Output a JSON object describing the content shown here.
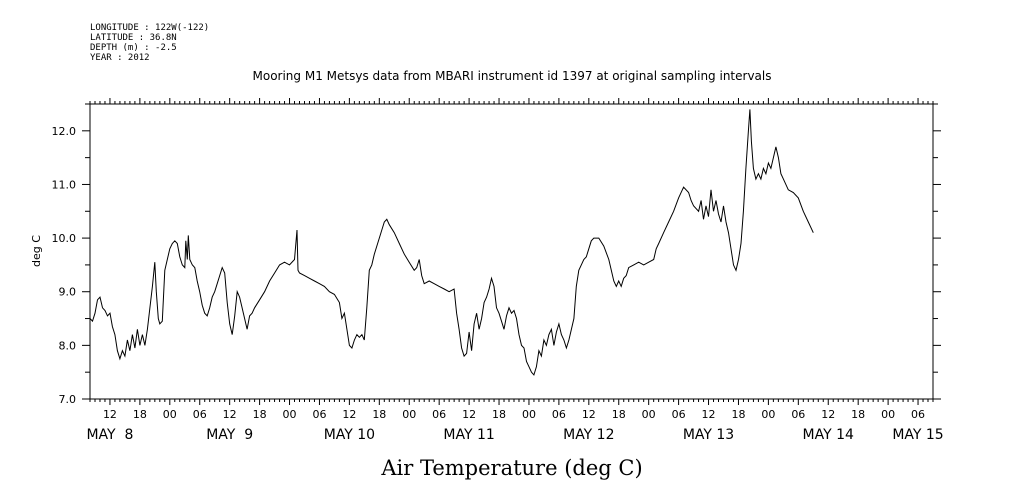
{
  "metadata": {
    "longitude": "LONGITUDE : 122W(-122)",
    "latitude": "LATITUDE : 36.8N",
    "depth": "DEPTH (m) : -2.5",
    "year": "YEAR : 2012"
  },
  "chart_data": {
    "type": "line",
    "title": "Mooring M1 Metsys data from MBARI instrument id 1397 at original sampling intervals",
    "xlabel": "Air Temperature (deg C)",
    "ylabel": "deg C",
    "ylim": [
      7.0,
      12.5
    ],
    "yticks": [
      "7.0",
      "8.0",
      "9.0",
      "10.0",
      "11.0",
      "12.0"
    ],
    "x_units": "hours since MAY 8 00:00",
    "xlim": [
      8.0,
      177.0
    ],
    "hour_tick_labels": [
      {
        "x": 12,
        "label": "12"
      },
      {
        "x": 18,
        "label": "18"
      },
      {
        "x": 24,
        "label": "00"
      },
      {
        "x": 30,
        "label": "06"
      },
      {
        "x": 36,
        "label": "12"
      },
      {
        "x": 42,
        "label": "18"
      },
      {
        "x": 48,
        "label": "00"
      },
      {
        "x": 54,
        "label": "06"
      },
      {
        "x": 60,
        "label": "12"
      },
      {
        "x": 66,
        "label": "18"
      },
      {
        "x": 72,
        "label": "00"
      },
      {
        "x": 78,
        "label": "06"
      },
      {
        "x": 84,
        "label": "12"
      },
      {
        "x": 90,
        "label": "18"
      },
      {
        "x": 96,
        "label": "00"
      },
      {
        "x": 102,
        "label": "06"
      },
      {
        "x": 108,
        "label": "12"
      },
      {
        "x": 114,
        "label": "18"
      },
      {
        "x": 120,
        "label": "00"
      },
      {
        "x": 126,
        "label": "06"
      },
      {
        "x": 132,
        "label": "12"
      },
      {
        "x": 138,
        "label": "18"
      },
      {
        "x": 144,
        "label": "00"
      },
      {
        "x": 150,
        "label": "06"
      },
      {
        "x": 156,
        "label": "12"
      },
      {
        "x": 162,
        "label": "18"
      },
      {
        "x": 168,
        "label": "00"
      },
      {
        "x": 174,
        "label": "06"
      }
    ],
    "day_labels": [
      {
        "x": 12,
        "label": "MAY  8"
      },
      {
        "x": 36,
        "label": "MAY  9"
      },
      {
        "x": 60,
        "label": "MAY 10"
      },
      {
        "x": 84,
        "label": "MAY 11"
      },
      {
        "x": 108,
        "label": "MAY 12"
      },
      {
        "x": 132,
        "label": "MAY 13"
      },
      {
        "x": 156,
        "label": "MAY 14"
      },
      {
        "x": 174,
        "label": "MAY 15"
      }
    ],
    "grid": false,
    "series": [
      {
        "line_color": "#000000",
        "points": [
          [
            8.0,
            8.5
          ],
          [
            8.5,
            8.45
          ],
          [
            9.0,
            8.6
          ],
          [
            9.5,
            8.85
          ],
          [
            10.0,
            8.9
          ],
          [
            10.5,
            8.7
          ],
          [
            11.0,
            8.65
          ],
          [
            11.5,
            8.55
          ],
          [
            12.0,
            8.6
          ],
          [
            12.5,
            8.35
          ],
          [
            13.0,
            8.2
          ],
          [
            13.5,
            7.9
          ],
          [
            14.0,
            7.75
          ],
          [
            14.5,
            7.9
          ],
          [
            15.0,
            7.8
          ],
          [
            15.5,
            8.1
          ],
          [
            16.0,
            7.9
          ],
          [
            16.5,
            8.2
          ],
          [
            17.0,
            7.95
          ],
          [
            17.5,
            8.3
          ],
          [
            18.0,
            8.0
          ],
          [
            18.5,
            8.2
          ],
          [
            19.0,
            8.0
          ],
          [
            19.5,
            8.3
          ],
          [
            20.0,
            8.7
          ],
          [
            20.5,
            9.1
          ],
          [
            21.0,
            9.55
          ],
          [
            21.3,
            9.0
          ],
          [
            21.7,
            8.5
          ],
          [
            22.0,
            8.4
          ],
          [
            22.5,
            8.45
          ],
          [
            23.0,
            9.4
          ],
          [
            23.5,
            9.6
          ],
          [
            24.0,
            9.8
          ],
          [
            24.5,
            9.9
          ],
          [
            25.0,
            9.95
          ],
          [
            25.5,
            9.9
          ],
          [
            26.0,
            9.65
          ],
          [
            26.5,
            9.5
          ],
          [
            27.0,
            9.45
          ],
          [
            27.2,
            9.95
          ],
          [
            27.5,
            9.6
          ],
          [
            27.7,
            10.05
          ],
          [
            28.0,
            9.6
          ],
          [
            28.5,
            9.5
          ],
          [
            29.0,
            9.45
          ],
          [
            29.5,
            9.2
          ],
          [
            30.0,
            9.0
          ],
          [
            30.5,
            8.75
          ],
          [
            31.0,
            8.6
          ],
          [
            31.5,
            8.55
          ],
          [
            32.0,
            8.7
          ],
          [
            32.5,
            8.9
          ],
          [
            33.0,
            9.0
          ],
          [
            33.5,
            9.15
          ],
          [
            34.0,
            9.3
          ],
          [
            34.5,
            9.45
          ],
          [
            35.0,
            9.35
          ],
          [
            35.5,
            8.8
          ],
          [
            36.0,
            8.4
          ],
          [
            36.5,
            8.2
          ],
          [
            37.0,
            8.55
          ],
          [
            37.5,
            9.0
          ],
          [
            38.0,
            8.9
          ],
          [
            38.5,
            8.7
          ],
          [
            39.0,
            8.5
          ],
          [
            39.5,
            8.3
          ],
          [
            40.0,
            8.55
          ],
          [
            40.5,
            8.6
          ],
          [
            41.0,
            8.7
          ],
          [
            42.0,
            8.85
          ],
          [
            43.0,
            9.0
          ],
          [
            44.0,
            9.2
          ],
          [
            45.0,
            9.35
          ],
          [
            46.0,
            9.5
          ],
          [
            47.0,
            9.55
          ],
          [
            48.0,
            9.5
          ],
          [
            49.0,
            9.6
          ],
          [
            49.5,
            10.15
          ],
          [
            49.7,
            9.4
          ],
          [
            50.0,
            9.35
          ],
          [
            51.0,
            9.3
          ],
          [
            52.0,
            9.25
          ],
          [
            53.0,
            9.2
          ],
          [
            54.0,
            9.15
          ],
          [
            55.0,
            9.1
          ],
          [
            56.0,
            9.0
          ],
          [
            57.0,
            8.95
          ],
          [
            58.0,
            8.8
          ],
          [
            58.5,
            8.5
          ],
          [
            59.0,
            8.6
          ],
          [
            59.5,
            8.3
          ],
          [
            60.0,
            8.0
          ],
          [
            60.5,
            7.95
          ],
          [
            61.0,
            8.1
          ],
          [
            61.5,
            8.2
          ],
          [
            62.0,
            8.15
          ],
          [
            62.5,
            8.2
          ],
          [
            63.0,
            8.1
          ],
          [
            63.5,
            8.7
          ],
          [
            64.0,
            9.4
          ],
          [
            64.5,
            9.5
          ],
          [
            65.0,
            9.7
          ],
          [
            66.0,
            10.0
          ],
          [
            67.0,
            10.3
          ],
          [
            67.5,
            10.35
          ],
          [
            68.0,
            10.25
          ],
          [
            69.0,
            10.1
          ],
          [
            70.0,
            9.9
          ],
          [
            71.0,
            9.7
          ],
          [
            72.0,
            9.55
          ],
          [
            73.0,
            9.4
          ],
          [
            73.5,
            9.45
          ],
          [
            74.0,
            9.6
          ],
          [
            74.5,
            9.3
          ],
          [
            75.0,
            9.15
          ],
          [
            76.0,
            9.2
          ],
          [
            77.0,
            9.15
          ],
          [
            78.0,
            9.1
          ],
          [
            79.0,
            9.05
          ],
          [
            80.0,
            9.0
          ],
          [
            81.0,
            9.05
          ],
          [
            81.5,
            8.6
          ],
          [
            82.0,
            8.3
          ],
          [
            82.5,
            7.95
          ],
          [
            83.0,
            7.8
          ],
          [
            83.5,
            7.85
          ],
          [
            84.0,
            8.25
          ],
          [
            84.5,
            7.9
          ],
          [
            85.0,
            8.4
          ],
          [
            85.5,
            8.6
          ],
          [
            86.0,
            8.3
          ],
          [
            86.5,
            8.5
          ],
          [
            87.0,
            8.8
          ],
          [
            87.5,
            8.9
          ],
          [
            88.0,
            9.05
          ],
          [
            88.5,
            9.25
          ],
          [
            89.0,
            9.1
          ],
          [
            89.5,
            8.7
          ],
          [
            90.0,
            8.6
          ],
          [
            90.5,
            8.45
          ],
          [
            91.0,
            8.3
          ],
          [
            91.5,
            8.55
          ],
          [
            92.0,
            8.7
          ],
          [
            92.5,
            8.6
          ],
          [
            93.0,
            8.65
          ],
          [
            93.5,
            8.5
          ],
          [
            94.0,
            8.2
          ],
          [
            94.5,
            8.0
          ],
          [
            95.0,
            7.95
          ],
          [
            95.5,
            7.7
          ],
          [
            96.0,
            7.6
          ],
          [
            96.5,
            7.5
          ],
          [
            97.0,
            7.45
          ],
          [
            97.5,
            7.6
          ],
          [
            98.0,
            7.9
          ],
          [
            98.5,
            7.8
          ],
          [
            99.0,
            8.1
          ],
          [
            99.5,
            8.0
          ],
          [
            100.0,
            8.2
          ],
          [
            100.5,
            8.3
          ],
          [
            101.0,
            8.0
          ],
          [
            101.5,
            8.25
          ],
          [
            102.0,
            8.4
          ],
          [
            102.5,
            8.2
          ],
          [
            103.0,
            8.1
          ],
          [
            103.5,
            7.95
          ],
          [
            104.0,
            8.1
          ],
          [
            104.5,
            8.3
          ],
          [
            105.0,
            8.5
          ],
          [
            105.5,
            9.1
          ],
          [
            106.0,
            9.4
          ],
          [
            106.5,
            9.5
          ],
          [
            107.0,
            9.6
          ],
          [
            107.5,
            9.65
          ],
          [
            108.0,
            9.8
          ],
          [
            108.5,
            9.95
          ],
          [
            109.0,
            10.0
          ],
          [
            110.0,
            10.0
          ],
          [
            111.0,
            9.85
          ],
          [
            112.0,
            9.6
          ],
          [
            112.5,
            9.4
          ],
          [
            113.0,
            9.2
          ],
          [
            113.5,
            9.1
          ],
          [
            114.0,
            9.2
          ],
          [
            114.5,
            9.1
          ],
          [
            115.0,
            9.25
          ],
          [
            115.5,
            9.3
          ],
          [
            116.0,
            9.45
          ],
          [
            117.0,
            9.5
          ],
          [
            118.0,
            9.55
          ],
          [
            119.0,
            9.5
          ],
          [
            120.0,
            9.55
          ],
          [
            121.0,
            9.6
          ],
          [
            121.5,
            9.8
          ],
          [
            122.0,
            9.9
          ],
          [
            123.0,
            10.1
          ],
          [
            124.0,
            10.3
          ],
          [
            125.0,
            10.5
          ],
          [
            126.0,
            10.75
          ],
          [
            127.0,
            10.95
          ],
          [
            128.0,
            10.85
          ],
          [
            128.5,
            10.7
          ],
          [
            129.0,
            10.6
          ],
          [
            130.0,
            10.5
          ],
          [
            130.5,
            10.7
          ],
          [
            131.0,
            10.35
          ],
          [
            131.5,
            10.6
          ],
          [
            132.0,
            10.4
          ],
          [
            132.5,
            10.9
          ],
          [
            133.0,
            10.5
          ],
          [
            133.5,
            10.7
          ],
          [
            134.0,
            10.45
          ],
          [
            134.5,
            10.3
          ],
          [
            135.0,
            10.6
          ],
          [
            135.5,
            10.3
          ],
          [
            136.0,
            10.1
          ],
          [
            136.5,
            9.8
          ],
          [
            137.0,
            9.5
          ],
          [
            137.5,
            9.4
          ],
          [
            138.0,
            9.6
          ],
          [
            138.5,
            9.9
          ],
          [
            139.0,
            10.5
          ],
          [
            139.5,
            11.3
          ],
          [
            140.0,
            12.0
          ],
          [
            140.3,
            12.4
          ],
          [
            140.6,
            11.8
          ],
          [
            141.0,
            11.3
          ],
          [
            141.5,
            11.1
          ],
          [
            142.0,
            11.2
          ],
          [
            142.5,
            11.1
          ],
          [
            143.0,
            11.3
          ],
          [
            143.5,
            11.2
          ],
          [
            144.0,
            11.4
          ],
          [
            144.5,
            11.3
          ],
          [
            145.0,
            11.5
          ],
          [
            145.5,
            11.7
          ],
          [
            146.0,
            11.5
          ],
          [
            146.5,
            11.2
          ],
          [
            147.0,
            11.1
          ],
          [
            148.0,
            10.9
          ],
          [
            149.0,
            10.85
          ],
          [
            150.0,
            10.75
          ],
          [
            151.0,
            10.5
          ],
          [
            152.0,
            10.3
          ],
          [
            153.0,
            10.1
          ]
        ]
      }
    ]
  }
}
